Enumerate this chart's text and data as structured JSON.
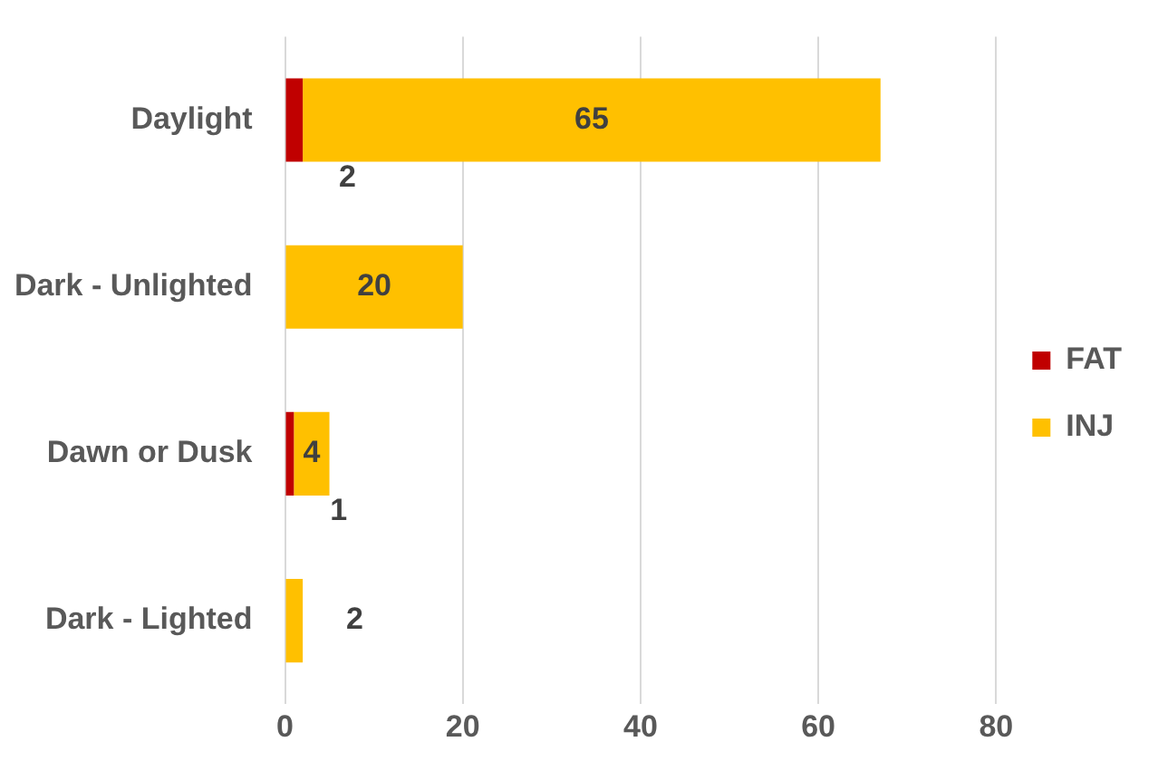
{
  "chart_data": {
    "type": "bar",
    "orientation": "horizontal",
    "stacked": true,
    "categories": [
      "Daylight",
      "Dark - Unlighted",
      "Dawn or Dusk",
      "Dark - Lighted"
    ],
    "series": [
      {
        "name": "FAT",
        "color": "#c00000",
        "values": [
          2,
          0,
          1,
          0
        ],
        "value_labels": [
          "2",
          null,
          "1",
          null
        ]
      },
      {
        "name": "INJ",
        "color": "#ffc000",
        "values": [
          65,
          20,
          4,
          2
        ],
        "value_labels": [
          "65",
          "20",
          "4",
          "2"
        ]
      }
    ],
    "xlim": [
      0,
      80
    ],
    "xticks": [
      0,
      20,
      40,
      60,
      80
    ],
    "grid": "x",
    "legend": "right"
  }
}
